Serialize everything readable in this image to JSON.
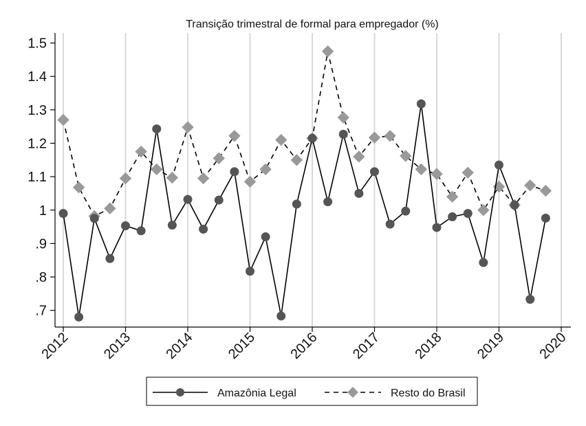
{
  "chart_data": {
    "type": "line",
    "title": "Transição trimestral de formal para empregador (%)",
    "xlabel": "",
    "ylabel": "",
    "x_tick_labels": [
      "2012",
      "2013",
      "2014",
      "2015",
      "2016",
      "2017",
      "2018",
      "2019",
      "2020"
    ],
    "y_tick_labels": [
      ".7",
      ".8",
      ".9",
      "1",
      "1.1",
      "1.2",
      "1.3",
      "1.4",
      "1.5"
    ],
    "y_ticks": [
      0.7,
      0.8,
      0.9,
      1.0,
      1.1,
      1.2,
      1.3,
      1.4,
      1.5
    ],
    "xlim": [
      2012,
      2020
    ],
    "ylim": [
      0.65,
      1.53
    ],
    "grid": "vertical",
    "legend_position": "bottom",
    "x": [
      2012.0,
      2012.25,
      2012.5,
      2012.75,
      2013.0,
      2013.25,
      2013.5,
      2013.75,
      2014.0,
      2014.25,
      2014.5,
      2014.75,
      2015.0,
      2015.25,
      2015.5,
      2015.75,
      2016.0,
      2016.25,
      2016.5,
      2016.75,
      2017.0,
      2017.25,
      2017.5,
      2017.75,
      2018.0,
      2018.25,
      2018.5,
      2018.75,
      2019.0,
      2019.25,
      2019.5,
      2019.75
    ],
    "series": [
      {
        "name": "Amazônia Legal",
        "color": "#555555",
        "marker": "circle",
        "line": "solid",
        "values": [
          0.99,
          0.68,
          0.975,
          0.855,
          0.953,
          0.938,
          1.243,
          0.955,
          1.032,
          0.943,
          1.03,
          1.115,
          0.817,
          0.92,
          0.683,
          1.018,
          1.215,
          1.025,
          1.227,
          1.05,
          1.115,
          0.958,
          0.997,
          1.318,
          0.948,
          0.98,
          0.99,
          0.843,
          1.135,
          1.015,
          0.733,
          0.976
        ]
      },
      {
        "name": "Resto do Brasil",
        "color": "#999999",
        "marker": "diamond",
        "line": "dashed",
        "values": [
          1.27,
          1.068,
          0.982,
          1.005,
          1.095,
          1.175,
          1.122,
          1.097,
          1.248,
          1.095,
          1.155,
          1.222,
          1.085,
          1.122,
          1.21,
          1.15,
          1.215,
          1.475,
          1.277,
          1.16,
          1.217,
          1.222,
          1.162,
          1.122,
          1.108,
          1.04,
          1.112,
          1.0,
          1.07,
          1.015,
          1.074,
          1.058
        ]
      }
    ]
  }
}
